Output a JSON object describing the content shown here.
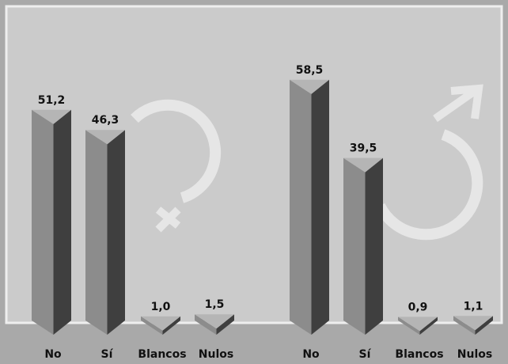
{
  "chart_data": [
    {
      "type": "bar",
      "categories": [
        "No",
        "Sí",
        "Blancos",
        "Nulos"
      ],
      "values": [
        51.2,
        46.3,
        1.0,
        1.5
      ],
      "value_labels": [
        "51,2",
        "46,3",
        "1,0",
        "1,5"
      ],
      "color": "#8c8c8c"
    },
    {
      "type": "bar",
      "categories": [
        "No",
        "Sí",
        "Blancos",
        "Nulos"
      ],
      "values": [
        58.5,
        39.5,
        0.9,
        1.1
      ],
      "value_labels": [
        "58,5",
        "39,5",
        "0,9",
        "1,1"
      ],
      "color": "#8c8c8c"
    }
  ]
}
